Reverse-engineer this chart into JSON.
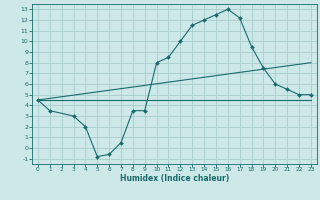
{
  "bg_color": "#cce8e8",
  "grid_color": "#aacccc",
  "line_color": "#1a6b6b",
  "xlabel": "Humidex (Indice chaleur)",
  "xlim": [
    -0.5,
    23.5
  ],
  "ylim": [
    -1.5,
    13.5
  ],
  "xticks": [
    0,
    1,
    2,
    3,
    4,
    5,
    6,
    7,
    8,
    9,
    10,
    11,
    12,
    13,
    14,
    15,
    16,
    17,
    18,
    19,
    20,
    21,
    22,
    23
  ],
  "yticks": [
    -1,
    0,
    1,
    2,
    3,
    4,
    5,
    6,
    7,
    8,
    9,
    10,
    11,
    12,
    13
  ],
  "curve_x": [
    0,
    1,
    3,
    4,
    5,
    6,
    7,
    8,
    9,
    10,
    11,
    12,
    13,
    14,
    15,
    16,
    17,
    18,
    19,
    20,
    21,
    22,
    23
  ],
  "curve_y": [
    4.5,
    3.5,
    3.0,
    2.0,
    -0.8,
    -0.6,
    0.5,
    3.5,
    3.5,
    8.0,
    8.5,
    10.0,
    11.5,
    12.0,
    12.5,
    13.0,
    12.2,
    9.5,
    7.5,
    6.0,
    5.5,
    5.0,
    5.0
  ],
  "line1_x": [
    0,
    23
  ],
  "line1_y": [
    4.5,
    8.0
  ],
  "line2_x": [
    0,
    23
  ],
  "line2_y": [
    4.5,
    4.5
  ]
}
